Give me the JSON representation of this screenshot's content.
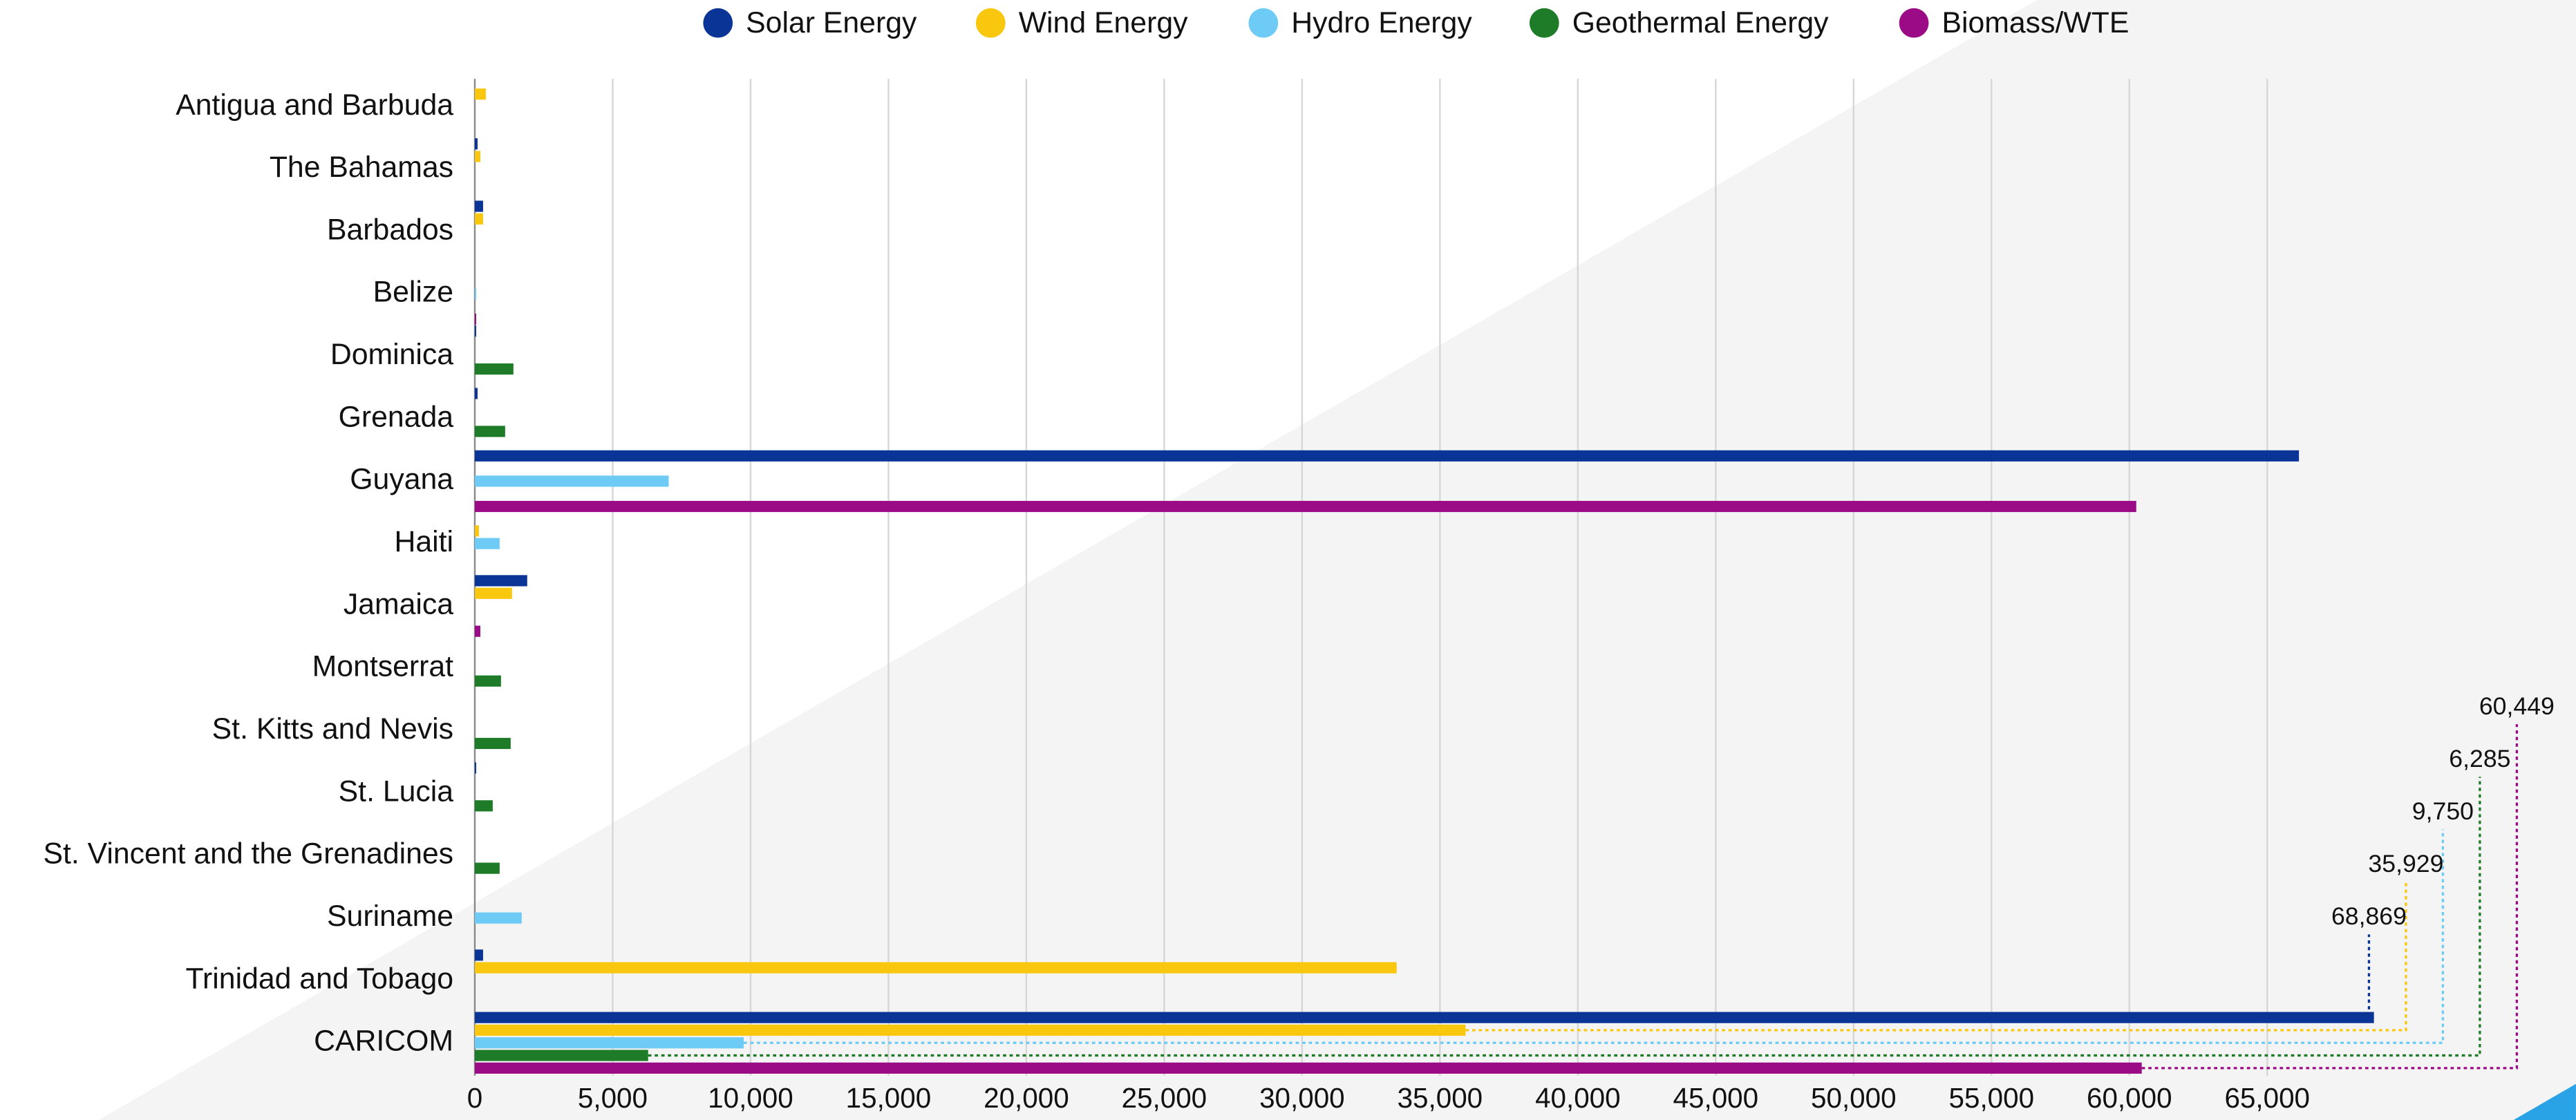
{
  "chart_data": {
    "type": "bar",
    "orientation": "horizontal",
    "categories": [
      "Antigua and Barbuda",
      "The Bahamas",
      "Barbados",
      "Belize",
      "Dominica",
      "Grenada",
      "Guyana",
      "Haiti",
      "Jamaica",
      "Montserrat",
      "St. Kitts and Nevis",
      "St. Lucia",
      "St. Vincent and the Grenadines",
      "Suriname",
      "Trinidad and Tobago",
      "CARICOM"
    ],
    "series": [
      {
        "name": "Solar Energy",
        "color": "#0a3596",
        "values": [
          0,
          100,
          300,
          0,
          50,
          100,
          66150,
          0,
          1900,
          0,
          0,
          50,
          0,
          0,
          300,
          68869
        ],
        "value_labels": [
          null,
          null,
          null,
          null,
          null,
          null,
          null,
          null,
          null,
          null,
          null,
          null,
          null,
          null,
          null,
          "68,869"
        ]
      },
      {
        "name": "Wind Energy",
        "color": "#f9c80e",
        "values": [
          400,
          200,
          300,
          0,
          0,
          0,
          0,
          150,
          1350,
          0,
          0,
          0,
          0,
          0,
          33430,
          35929
        ],
        "value_labels": [
          null,
          null,
          null,
          null,
          null,
          null,
          null,
          null,
          null,
          null,
          null,
          null,
          null,
          null,
          null,
          "35,929"
        ]
      },
      {
        "name": "Hydro Energy",
        "color": "#6ecbf5",
        "values": [
          0,
          0,
          0,
          50,
          0,
          0,
          7030,
          900,
          0,
          0,
          0,
          0,
          0,
          1700,
          0,
          9750
        ],
        "value_labels": [
          null,
          null,
          null,
          null,
          null,
          null,
          null,
          null,
          null,
          null,
          null,
          null,
          null,
          null,
          null,
          "9,750"
        ]
      },
      {
        "name": "Geothermal Energy",
        "color": "#1e7b27",
        "values": [
          0,
          0,
          0,
          0,
          1400,
          1100,
          0,
          0,
          0,
          950,
          1300,
          650,
          900,
          0,
          0,
          6285
        ],
        "value_labels": [
          null,
          null,
          null,
          null,
          null,
          null,
          null,
          null,
          null,
          null,
          null,
          null,
          null,
          null,
          null,
          "6,285"
        ]
      },
      {
        "name": "Biomass/WTE",
        "color": "#9b0b86",
        "values": [
          0,
          0,
          0,
          50,
          0,
          0,
          60250,
          0,
          200,
          0,
          0,
          0,
          0,
          0,
          0,
          60449
        ],
        "value_labels": [
          null,
          null,
          null,
          null,
          null,
          null,
          null,
          null,
          null,
          null,
          null,
          null,
          null,
          null,
          null,
          "60,449"
        ]
      }
    ],
    "xlim": [
      0,
      70000
    ],
    "xticks": [
      0,
      {
        "value": 5000,
        "label": "5,000"
      },
      {
        "value": 10000,
        "label": "10,000"
      },
      {
        "value": 15000,
        "label": "15,000"
      },
      {
        "value": 20000,
        "label": "20,000"
      },
      {
        "value": 25000,
        "label": "25,000"
      },
      {
        "value": 30000,
        "label": "30,000"
      },
      {
        "value": 35000,
        "label": "35,000"
      },
      {
        "value": 40000,
        "label": "40,000"
      },
      {
        "value": 45000,
        "label": "45,000"
      },
      {
        "value": 50000,
        "label": "50,000"
      },
      {
        "value": 55000,
        "label": "55,000"
      },
      {
        "value": 60000,
        "label": "60,000"
      },
      {
        "value": 65000,
        "label": "65,000"
      }
    ],
    "grid": true,
    "legend": "top"
  }
}
